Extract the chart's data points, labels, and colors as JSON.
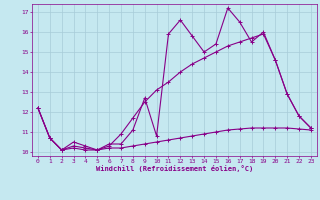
{
  "xlabel": "Windchill (Refroidissement éolien,°C)",
  "xlim": [
    -0.5,
    23.5
  ],
  "ylim": [
    9.8,
    17.4
  ],
  "yticks": [
    10,
    11,
    12,
    13,
    14,
    15,
    16,
    17
  ],
  "xticks": [
    0,
    1,
    2,
    3,
    4,
    5,
    6,
    7,
    8,
    9,
    10,
    11,
    12,
    13,
    14,
    15,
    16,
    17,
    18,
    19,
    20,
    21,
    22,
    23
  ],
  "bg_color": "#c5e8f0",
  "line_color": "#880088",
  "grid_color": "#a8ccd8",
  "line1_x": [
    0,
    1,
    2,
    3,
    4,
    5,
    6,
    7,
    8,
    9,
    10,
    11,
    12,
    13,
    14,
    15,
    16,
    17,
    18,
    19,
    20,
    21,
    22,
    23
  ],
  "line1_y": [
    12.2,
    10.7,
    10.1,
    10.5,
    10.3,
    10.1,
    10.4,
    10.4,
    11.1,
    12.7,
    10.8,
    15.9,
    16.6,
    15.8,
    15.0,
    15.4,
    17.2,
    16.5,
    15.5,
    16.0,
    14.6,
    12.9,
    11.8,
    11.2
  ],
  "line2_x": [
    0,
    1,
    2,
    3,
    4,
    5,
    6,
    7,
    8,
    9,
    10,
    11,
    12,
    13,
    14,
    15,
    16,
    17,
    18,
    19,
    20,
    21,
    22,
    23
  ],
  "line2_y": [
    12.2,
    10.7,
    10.1,
    10.3,
    10.2,
    10.1,
    10.3,
    10.9,
    11.7,
    12.5,
    13.1,
    13.5,
    14.0,
    14.4,
    14.7,
    15.0,
    15.3,
    15.5,
    15.7,
    15.9,
    14.6,
    12.9,
    11.8,
    11.2
  ],
  "line3_x": [
    0,
    1,
    2,
    3,
    4,
    5,
    6,
    7,
    8,
    9,
    10,
    11,
    12,
    13,
    14,
    15,
    16,
    17,
    18,
    19,
    20,
    21,
    22,
    23
  ],
  "line3_y": [
    12.2,
    10.7,
    10.1,
    10.2,
    10.1,
    10.1,
    10.2,
    10.2,
    10.3,
    10.4,
    10.5,
    10.6,
    10.7,
    10.8,
    10.9,
    11.0,
    11.1,
    11.15,
    11.2,
    11.2,
    11.2,
    11.2,
    11.15,
    11.1
  ]
}
